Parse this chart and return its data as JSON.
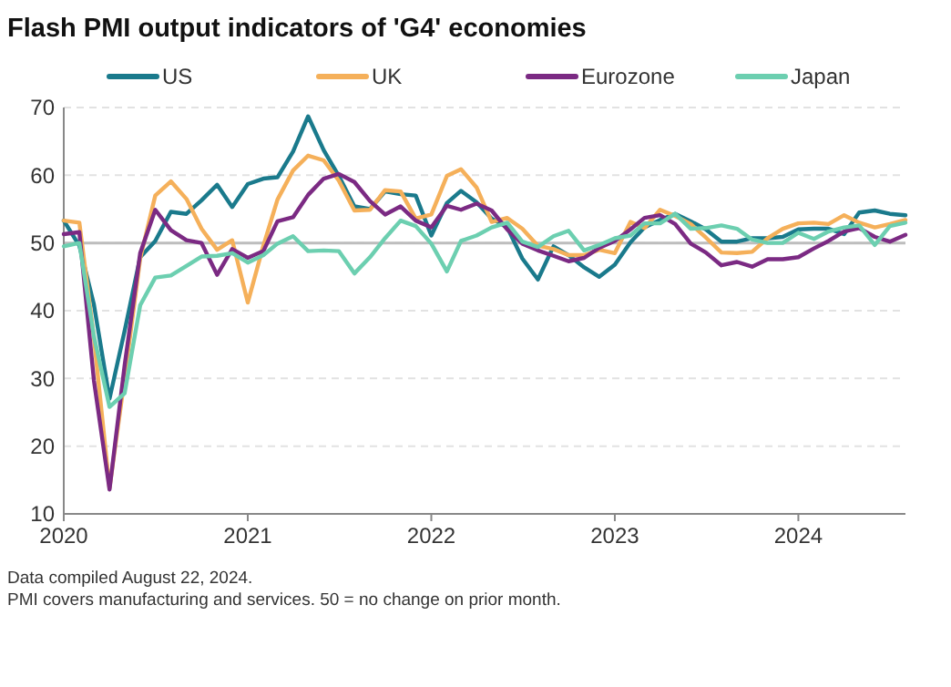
{
  "chart_data": {
    "type": "line",
    "title": "Flash PMI output indicators of 'G4' economies",
    "x": [
      "2020-01",
      "2020-02",
      "2020-03",
      "2020-04",
      "2020-05",
      "2020-06",
      "2020-07",
      "2020-08",
      "2020-09",
      "2020-10",
      "2020-11",
      "2020-12",
      "2021-01",
      "2021-02",
      "2021-03",
      "2021-04",
      "2021-05",
      "2021-06",
      "2021-07",
      "2021-08",
      "2021-09",
      "2021-10",
      "2021-11",
      "2021-12",
      "2022-01",
      "2022-02",
      "2022-03",
      "2022-04",
      "2022-05",
      "2022-06",
      "2022-07",
      "2022-08",
      "2022-09",
      "2022-10",
      "2022-11",
      "2022-12",
      "2023-01",
      "2023-02",
      "2023-03",
      "2023-04",
      "2023-05",
      "2023-06",
      "2023-07",
      "2023-08",
      "2023-09",
      "2023-10",
      "2023-11",
      "2023-12",
      "2024-01",
      "2024-02",
      "2024-03",
      "2024-04",
      "2024-05",
      "2024-06",
      "2024-07",
      "2024-08"
    ],
    "series": [
      {
        "name": "US",
        "color": "#1a7a8c",
        "values": [
          53.3,
          49.6,
          40.9,
          27.0,
          37.0,
          47.9,
          50.3,
          54.6,
          54.3,
          56.3,
          58.6,
          55.3,
          58.7,
          59.5,
          59.7,
          63.5,
          68.7,
          63.7,
          59.9,
          55.4,
          55.0,
          57.6,
          57.2,
          57.0,
          51.1,
          55.9,
          57.7,
          56.0,
          53.6,
          52.3,
          47.7,
          44.6,
          49.5,
          48.2,
          46.4,
          45.0,
          46.8,
          50.1,
          52.3,
          53.4,
          54.3,
          53.2,
          52.0,
          50.2,
          50.2,
          50.7,
          50.7,
          50.9,
          52.0,
          52.1,
          52.1,
          51.3,
          54.5,
          54.8,
          54.3,
          54.1
        ]
      },
      {
        "name": "UK",
        "color": "#f5b05a",
        "values": [
          53.3,
          53.0,
          36.0,
          13.8,
          30.0,
          47.7,
          57.0,
          59.1,
          56.5,
          52.1,
          49.0,
          50.4,
          41.2,
          49.6,
          56.4,
          60.7,
          62.9,
          62.2,
          59.2,
          54.8,
          54.9,
          57.8,
          57.6,
          53.6,
          54.2,
          59.9,
          60.9,
          58.2,
          53.1,
          53.7,
          52.1,
          49.6,
          49.1,
          48.2,
          48.2,
          49.0,
          48.5,
          53.1,
          52.2,
          54.9,
          54.0,
          52.8,
          50.8,
          48.6,
          48.5,
          48.7,
          50.7,
          52.1,
          52.9,
          53.0,
          52.8,
          54.1,
          53.0,
          52.3,
          52.8,
          53.4
        ]
      },
      {
        "name": "Eurozone",
        "color": "#7b2a83",
        "values": [
          51.3,
          51.6,
          29.7,
          13.6,
          31.9,
          48.5,
          54.9,
          51.9,
          50.4,
          50.0,
          45.3,
          49.1,
          47.8,
          48.8,
          53.2,
          53.8,
          57.1,
          59.5,
          60.2,
          59.0,
          56.2,
          54.2,
          55.4,
          53.3,
          52.3,
          55.5,
          54.9,
          55.8,
          54.8,
          52.0,
          49.9,
          48.9,
          48.1,
          47.3,
          47.8,
          49.3,
          50.3,
          52.0,
          53.7,
          54.1,
          52.8,
          49.9,
          48.6,
          46.7,
          47.2,
          46.5,
          47.6,
          47.6,
          47.9,
          49.2,
          50.3,
          51.7,
          52.2,
          50.9,
          50.2,
          51.2
        ]
      },
      {
        "name": "Japan",
        "color": "#6ccfb0",
        "values": [
          49.5,
          50.0,
          36.2,
          25.8,
          27.8,
          40.8,
          44.9,
          45.2,
          46.6,
          48.0,
          48.1,
          48.5,
          47.1,
          48.2,
          49.9,
          51.0,
          48.8,
          48.9,
          48.8,
          45.5,
          47.9,
          50.7,
          53.3,
          52.5,
          49.9,
          45.8,
          50.3,
          51.1,
          52.3,
          53.0,
          50.2,
          49.4,
          51.0,
          51.8,
          48.9,
          49.7,
          50.7,
          51.1,
          52.9,
          52.9,
          54.3,
          52.1,
          52.2,
          52.6,
          52.1,
          50.5,
          50.0,
          50.0,
          51.5,
          50.6,
          51.7,
          52.3,
          52.6,
          49.7,
          52.5,
          53.0
        ]
      }
    ],
    "xlim": [
      "2020-01",
      "2024-08"
    ],
    "xticks": [
      {
        "value": "2020-01",
        "label": "2020"
      },
      {
        "value": "2021-01",
        "label": "2021"
      },
      {
        "value": "2022-01",
        "label": "2022"
      },
      {
        "value": "2023-01",
        "label": "2023"
      },
      {
        "value": "2024-01",
        "label": "2024"
      }
    ],
    "ylim": [
      10,
      70
    ],
    "yticks": [
      10,
      20,
      30,
      40,
      50,
      60,
      70
    ],
    "grid": "y",
    "legend": "top",
    "marker": "none",
    "line_style": "solid",
    "ref_lines": [
      {
        "axis": "y",
        "value": 50,
        "color": "#bdbdbd"
      }
    ],
    "annotations": [
      "Data compiled August 22, 2024.",
      "PMI covers manufacturing and services. 50 = no change on prior month."
    ]
  }
}
